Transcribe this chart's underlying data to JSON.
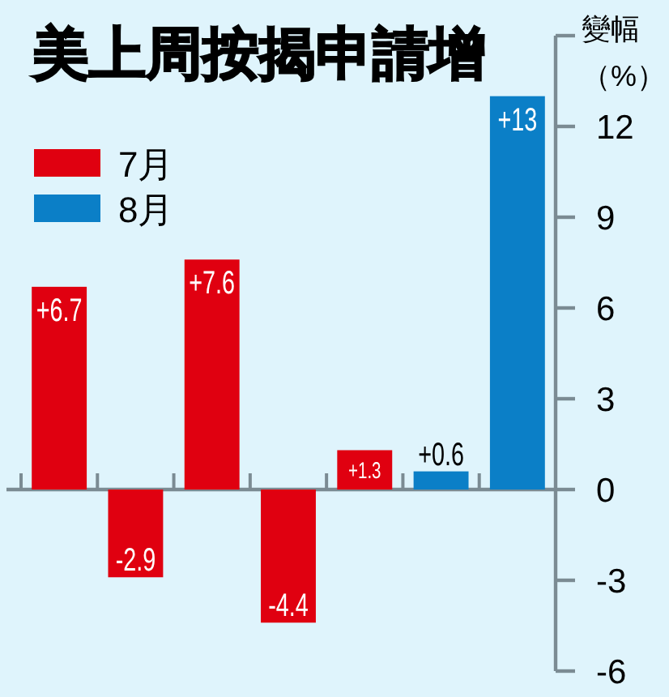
{
  "chart_data": {
    "type": "bar",
    "title": "美上周按揭申請增",
    "ylabel": "變幅（%）",
    "categories": [
      null,
      null,
      null,
      null,
      null,
      null,
      null
    ],
    "series": [
      {
        "name": "7月",
        "color": "#e00010",
        "values": [
          6.7,
          -2.9,
          7.6,
          -4.4,
          1.3,
          null,
          null
        ],
        "value_labels": [
          "+6.7",
          "-2.9",
          "+7.6",
          "-4.4",
          "+1.3",
          null,
          null
        ]
      },
      {
        "name": "8月",
        "color": "#0b7fc7",
        "values": [
          null,
          null,
          null,
          null,
          null,
          0.6,
          13
        ],
        "value_labels": [
          null,
          null,
          null,
          null,
          null,
          "+0.6",
          "+13"
        ]
      }
    ],
    "ylim": [
      -6,
      15
    ],
    "yticks": [
      -6,
      -3,
      0,
      3,
      6,
      9,
      12,
      {
        "value": 15,
        "label": null
      }
    ],
    "legend": "top left",
    "tick_labels": "y"
  }
}
